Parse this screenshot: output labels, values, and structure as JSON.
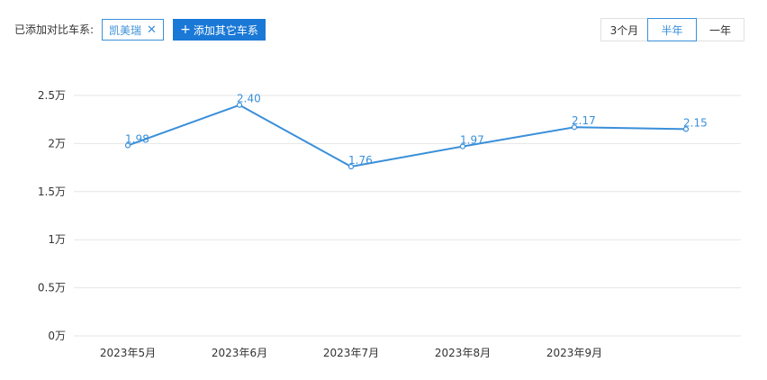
{
  "toolbar": {
    "compare_label": "已添加对比车系:",
    "selected_model": "凯美瑞",
    "remove_icon": "close-icon",
    "add_button_icon": "plus-icon",
    "add_button_label": "添加其它车系",
    "range_options": [
      "3个月",
      "半年",
      "一年"
    ],
    "range_selected": "半年"
  },
  "colors": {
    "accent": "#3a8fd9",
    "button_bg": "#1a78d6",
    "grid": "#e6e6e6"
  },
  "chart_data": {
    "type": "line",
    "title": "",
    "xlabel": "",
    "ylabel": "",
    "categories": [
      "2023年5月",
      "2023年6月",
      "2023年7月",
      "2023年8月",
      "2023年9月",
      ""
    ],
    "series": [
      {
        "name": "凯美瑞",
        "values": [
          1.98,
          2.4,
          1.76,
          1.97,
          2.17,
          2.15
        ]
      }
    ],
    "value_labels": [
      "1.98",
      "2.40",
      "1.76",
      "1.97",
      "2.17",
      "2.15"
    ],
    "ylim": [
      0,
      2.5
    ],
    "yticks": [
      0,
      0.5,
      1,
      1.5,
      2,
      2.5
    ],
    "ytick_labels": [
      "0万",
      "0.5万",
      "1万",
      "1.5万",
      "2万",
      "2.5万"
    ],
    "grid": true,
    "legend": "none"
  }
}
